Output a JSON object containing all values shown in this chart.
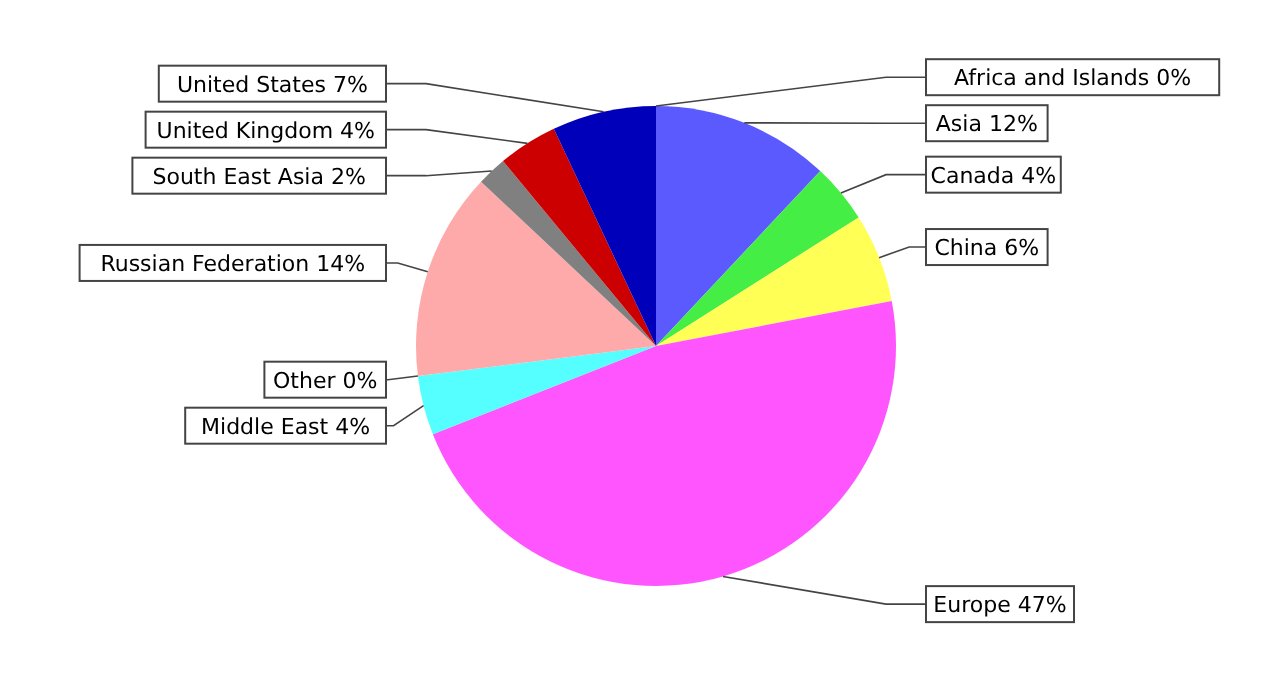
{
  "chart_data": {
    "type": "pie",
    "categories": [
      "Africa and Islands",
      "Asia",
      "Canada",
      "China",
      "Europe",
      "Middle East",
      "Other",
      "Russian Federation",
      "South East Asia",
      "United Kingdom",
      "United States"
    ],
    "values": [
      0,
      12,
      4,
      6,
      47,
      4,
      0,
      14,
      2,
      4,
      7
    ],
    "colors": [
      "#ff7f7f",
      "#5a5aff",
      "#44ee44",
      "#ffff55",
      "#ff55ff",
      "#55ffff",
      "#cccccc",
      "#ffaaaa",
      "#808080",
      "#cc0000",
      "#0000bb"
    ],
    "value_labels": [
      "0%",
      "12%",
      "4%",
      "6%",
      "47%",
      "4%",
      "0%",
      "14%",
      "2%",
      "4%",
      "7%"
    ]
  }
}
